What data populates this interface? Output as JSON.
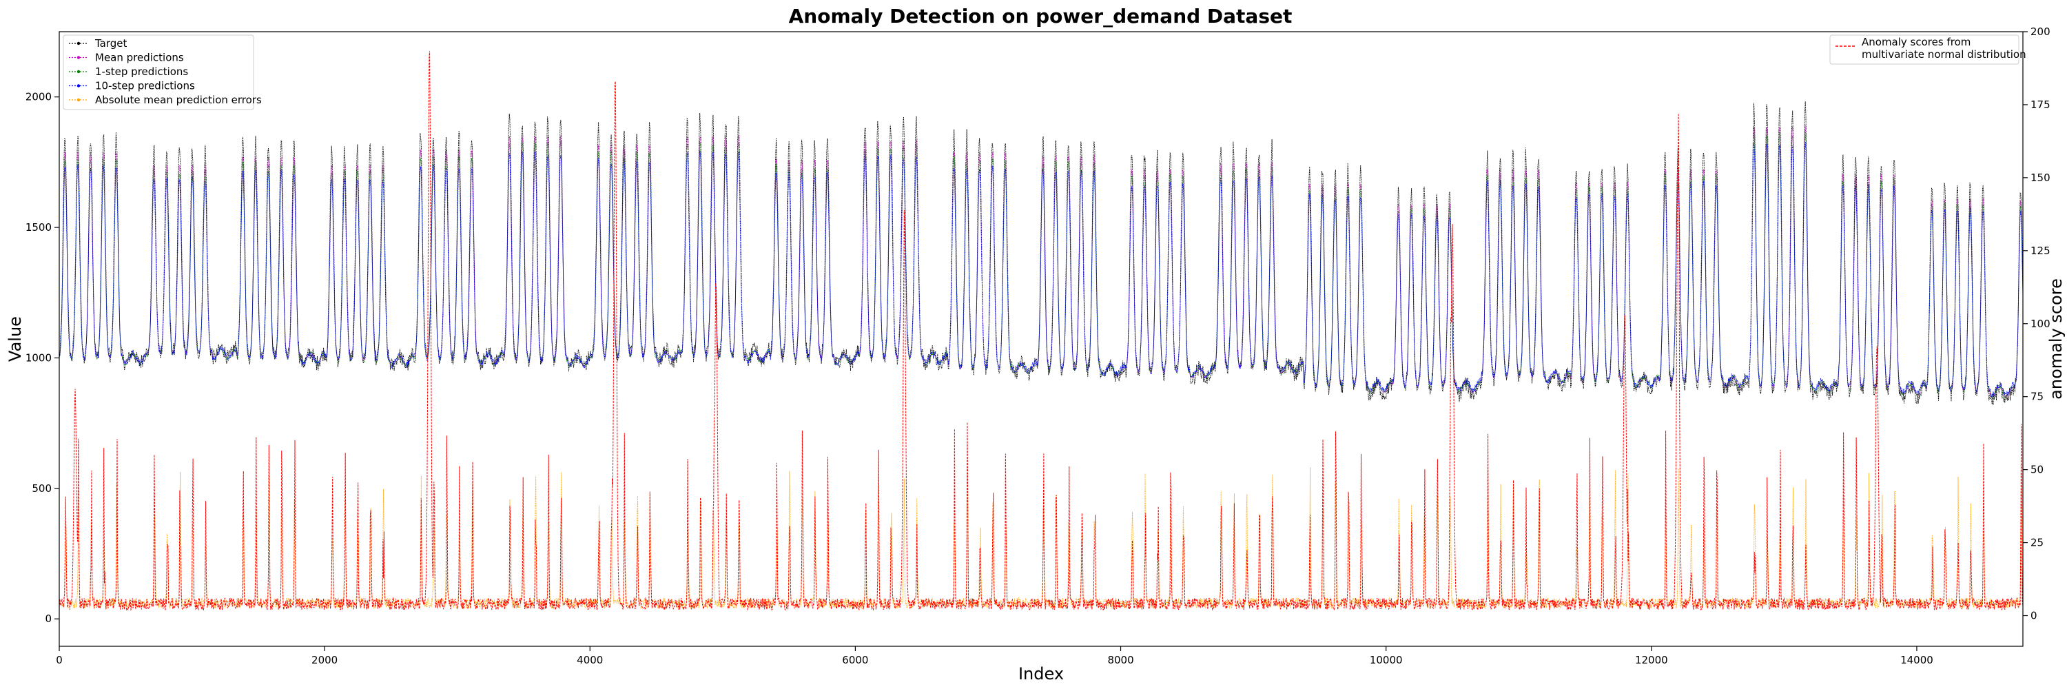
{
  "chart_data": {
    "type": "line",
    "title": "Anomaly Detection on power_demand Dataset",
    "xlabel": "Index",
    "ylabel": "Value",
    "y2label": "anomaly score",
    "xlim": [
      0,
      14800
    ],
    "ylim": [
      -105,
      2250
    ],
    "y2lim": [
      -10.5,
      200
    ],
    "xticks": [
      0,
      2000,
      4000,
      6000,
      8000,
      10000,
      12000,
      14000
    ],
    "yticks": [
      0,
      500,
      1000,
      1500,
      2000
    ],
    "y2ticks": [
      0,
      25,
      50,
      75,
      100,
      125,
      150,
      175,
      200
    ],
    "grid": false,
    "legend_left": {
      "placement": "upper-left",
      "entries": [
        {
          "name": "Target",
          "color": "#000000",
          "style": "dotted-marker"
        },
        {
          "name": "Mean predictions",
          "color": "#c000c0",
          "style": "dotted-marker"
        },
        {
          "name": "1-step predictions",
          "color": "#008000",
          "style": "dotted-marker"
        },
        {
          "name": "10-step predictions",
          "color": "#0000ff",
          "style": "dotted-marker"
        },
        {
          "name": "Absolute mean prediction errors",
          "color": "#ffa500",
          "style": "dotted-marker"
        }
      ]
    },
    "legend_right": {
      "placement": "upper-right",
      "entries": [
        {
          "name": "Anomaly scores from\nmultivariate normal distribution",
          "color": "#ff0000",
          "style": "dashed"
        }
      ]
    },
    "description_of_series": {
      "period_index": 670,
      "peaks_per_week": 5,
      "week_peak_values": [
        1850,
        1800,
        1830,
        1800,
        1860,
        1920,
        1880,
        1920,
        1820,
        1900,
        1850,
        1840,
        1780,
        1810,
        1720,
        1640,
        1780,
        1730,
        1780,
        1960,
        1760,
        1660,
        1650,
        1630
      ],
      "week_trough_values": [
        1000,
        1020,
        1000,
        990,
        1000,
        990,
        1010,
        1010,
        1000,
        1000,
        960,
        950,
        940,
        960,
        880,
        880,
        920,
        900,
        900,
        880,
        870,
        860,
        880,
        920,
        900
      ],
      "anomaly_score_spike_indices": [
        120,
        2790,
        4190,
        4950,
        6370,
        10500,
        11800,
        12200,
        13700
      ],
      "anomaly_score_spike_values": [
        73,
        193,
        182,
        112,
        114,
        130,
        100,
        145,
        90
      ]
    }
  }
}
